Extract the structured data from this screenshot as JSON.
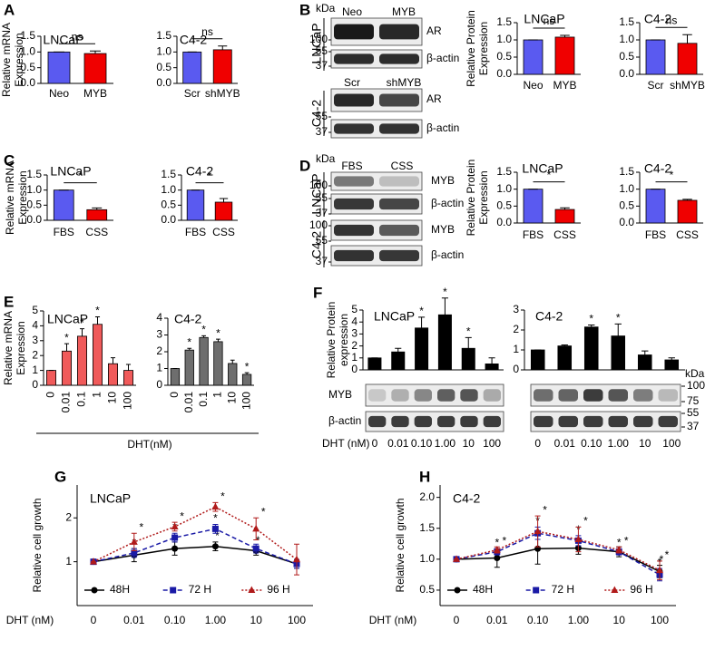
{
  "panels": [
    "A",
    "B",
    "C",
    "D",
    "E",
    "F",
    "G",
    "H"
  ],
  "blots": {
    "B": {
      "unit": "kDa",
      "groups": [
        {
          "cell": "LNCaP",
          "lanes": [
            "Neo",
            "MYB"
          ],
          "rows": [
            "AR",
            "β-actin"
          ],
          "markers": [
            "100",
            "55",
            "37"
          ]
        },
        {
          "cell": "C4-2",
          "lanes": [
            "Scr",
            "shMYB"
          ],
          "rows": [
            "AR",
            "β-actin"
          ],
          "markers": [
            "55",
            "37"
          ]
        }
      ]
    },
    "D": {
      "unit": "kDa",
      "groups": [
        {
          "cell": "LNCaP",
          "lanes": [
            "FBS",
            "CSS"
          ],
          "rows": [
            "MYB",
            "β-actin"
          ],
          "markers": [
            "100",
            "55",
            "37"
          ]
        },
        {
          "cell": "C4-2",
          "rows": [
            "MYB",
            "β-actin"
          ],
          "markers": [
            "100",
            "55",
            "37"
          ]
        }
      ]
    },
    "F": {
      "unit": "kDa",
      "rows": [
        "MYB",
        "β-actin"
      ],
      "markers": [
        "100",
        "75",
        "55",
        "37"
      ]
    }
  },
  "chart_data": [
    {
      "type": "bar",
      "title": "LNCaP",
      "ylabel": [
        "Relative mRNA",
        "Expression"
      ],
      "categories": [
        "Neo",
        "MYB"
      ],
      "values": [
        1.0,
        0.95
      ],
      "errors": [
        0,
        0.08
      ],
      "colors": [
        "#5a5af0",
        "#f00000"
      ],
      "ylim": [
        0,
        1.5
      ],
      "yticks": [
        {
          "value": 0,
          "label": "0.0"
        },
        0.5,
        {
          "value": 1,
          "label": "1.0"
        },
        1.5
      ],
      "sig": "ns"
    },
    {
      "type": "bar",
      "title": "C4-2",
      "categories": [
        "Scr",
        "shMYB"
      ],
      "values": [
        1.0,
        1.07
      ],
      "errors": [
        0,
        0.12
      ],
      "colors": [
        "#5a5af0",
        "#f00000"
      ],
      "ylim": [
        0,
        1.5
      ],
      "yticks": [
        {
          "value": 0,
          "label": "0.0"
        },
        0.5,
        {
          "value": 1,
          "label": "1.0"
        },
        1.5
      ],
      "sig": "ns"
    },
    {
      "type": "bar",
      "title": "LNCaP",
      "ylabel": [
        "Relative Protein",
        "Expression"
      ],
      "categories": [
        "Neo",
        "MYB"
      ],
      "values": [
        1.0,
        1.08
      ],
      "errors": [
        0,
        0.05
      ],
      "colors": [
        "#5a5af0",
        "#f00000"
      ],
      "ylim": [
        0,
        1.5
      ],
      "yticks": [
        {
          "value": 0,
          "label": "0.0"
        },
        0.5,
        {
          "value": 1,
          "label": "1.0"
        },
        1.5
      ],
      "sig": "ns"
    },
    {
      "type": "bar",
      "title": "C4-2",
      "categories": [
        "Scr",
        "shMYB"
      ],
      "values": [
        1.0,
        0.9
      ],
      "errors": [
        0,
        0.25
      ],
      "colors": [
        "#5a5af0",
        "#f00000"
      ],
      "ylim": [
        0,
        1.5
      ],
      "yticks": [
        {
          "value": 0,
          "label": "0.0"
        },
        0.5,
        {
          "value": 1,
          "label": "1.0"
        },
        1.5
      ],
      "sig": "ns"
    },
    {
      "type": "bar",
      "title": "LNCaP",
      "ylabel": [
        "Relative mRNA",
        "Expression"
      ],
      "categories": [
        "FBS",
        "CSS"
      ],
      "values": [
        1.0,
        0.35
      ],
      "errors": [
        0,
        0.06
      ],
      "colors": [
        "#5a5af0",
        "#f00000"
      ],
      "ylim": [
        0,
        1.5
      ],
      "yticks": [
        {
          "value": 0,
          "label": "0.0"
        },
        0.5,
        {
          "value": 1,
          "label": "1.0"
        },
        1.5
      ],
      "sig": "*"
    },
    {
      "type": "bar",
      "title": "C4-2",
      "categories": [
        "FBS",
        "CSS"
      ],
      "values": [
        1.0,
        0.6
      ],
      "errors": [
        0,
        0.12
      ],
      "colors": [
        "#5a5af0",
        "#f00000"
      ],
      "ylim": [
        0,
        1.5
      ],
      "yticks": [
        {
          "value": 0,
          "label": "0.0"
        },
        0.5,
        {
          "value": 1,
          "label": "1.0"
        },
        1.5
      ],
      "sig": "*"
    },
    {
      "type": "bar",
      "title": "LNCaP",
      "ylabel": [
        "Relative Protein",
        "Expression"
      ],
      "categories": [
        "FBS",
        "CSS"
      ],
      "values": [
        1.0,
        0.4
      ],
      "errors": [
        0,
        0.05
      ],
      "colors": [
        "#5a5af0",
        "#f00000"
      ],
      "ylim": [
        0,
        1.5
      ],
      "yticks": [
        {
          "value": 0,
          "label": "0.0"
        },
        0.5,
        {
          "value": 1,
          "label": "1.0"
        },
        1.5
      ],
      "sig": "*"
    },
    {
      "type": "bar",
      "title": "C4-2",
      "categories": [
        "FBS",
        "CSS"
      ],
      "values": [
        1.0,
        0.67
      ],
      "errors": [
        0,
        0.03
      ],
      "colors": [
        "#5a5af0",
        "#f00000"
      ],
      "ylim": [
        0,
        1.5
      ],
      "yticks": [
        {
          "value": 0,
          "label": "0.0"
        },
        0.5,
        {
          "value": 1,
          "label": "1.0"
        },
        1.5
      ],
      "sig": "*"
    },
    {
      "type": "bar",
      "title": "LNCaP",
      "ylabel": [
        "Relative mRNA",
        "Expression"
      ],
      "xlabel": "DHT(nM)",
      "categories": [
        "0",
        "0.01",
        "0.1",
        "1",
        "10",
        "100"
      ],
      "values": [
        1.0,
        2.3,
        3.3,
        4.1,
        1.45,
        1.0
      ],
      "errors": [
        0,
        0.5,
        0.5,
        0.5,
        0.4,
        0.4
      ],
      "color": "#f05a5a",
      "ylim": [
        0,
        5
      ],
      "yticks": [
        0,
        1,
        2,
        3,
        4,
        5
      ],
      "sig": [
        null,
        "*",
        "*",
        "*",
        null,
        null
      ]
    },
    {
      "type": "bar",
      "title": "C4-2",
      "categories": [
        "0",
        "0.01",
        "0.1",
        "1",
        "10",
        "100"
      ],
      "values": [
        1.0,
        2.1,
        2.85,
        2.6,
        1.3,
        0.65
      ],
      "errors": [
        0,
        0.1,
        0.1,
        0.15,
        0.2,
        0.1
      ],
      "color": "#6e6e6e",
      "ylim": [
        0,
        4
      ],
      "yticks": [
        0,
        1,
        2,
        3,
        4
      ],
      "sig": [
        null,
        "*",
        "*",
        "*",
        null,
        "*"
      ]
    },
    {
      "type": "bar",
      "title": "LNCaP",
      "ylabel": [
        "Relative Protein",
        "expression"
      ],
      "xlabel": "DHT (nM)",
      "categories": [
        "0",
        "0.01",
        "0.10",
        "1.00",
        "10",
        "100"
      ],
      "values": [
        1.0,
        1.5,
        3.5,
        4.6,
        1.8,
        0.5
      ],
      "errors": [
        0,
        0.3,
        0.9,
        1.4,
        0.9,
        0.5
      ],
      "color": "#000000",
      "ylim": [
        0,
        5
      ],
      "yticks": [
        0,
        1,
        2,
        3,
        4,
        5
      ],
      "sig": [
        null,
        null,
        "*",
        "*",
        "*",
        null
      ]
    },
    {
      "type": "bar",
      "title": "C4-2",
      "categories": [
        "0",
        "0.01",
        "0.10",
        "1.00",
        "10",
        "100"
      ],
      "values": [
        1.0,
        1.2,
        2.15,
        1.7,
        0.75,
        0.5
      ],
      "errors": [
        0,
        0.05,
        0.1,
        0.6,
        0.2,
        0.1
      ],
      "color": "#000000",
      "ylim": [
        0,
        3
      ],
      "yticks": [
        0,
        1,
        2,
        3
      ],
      "sig": [
        null,
        null,
        "*",
        "*",
        null,
        null
      ]
    },
    {
      "type": "line",
      "title": "LNCaP",
      "ylabel": "Relative cell growth",
      "xlabel": "DHT (nM)",
      "categories": [
        "0",
        "0.01",
        "0.10",
        "1.00",
        "10",
        "100"
      ],
      "ylim": [
        0,
        2.75
      ],
      "yticks": [
        1,
        2
      ],
      "series": [
        {
          "name": "48H",
          "color": "#000000",
          "line_style": "solid",
          "marker": "circle",
          "values": [
            1.0,
            1.15,
            1.3,
            1.35,
            1.25,
            0.95
          ],
          "errors": [
            0,
            0.15,
            0.15,
            0.1,
            0.1,
            0.1
          ],
          "sig": [
            null,
            null,
            null,
            "*",
            "*",
            null
          ]
        },
        {
          "name": "72 H",
          "color": "#1a1aa6",
          "line_style": "dashed",
          "marker": "square",
          "values": [
            1.0,
            1.2,
            1.55,
            1.75,
            1.3,
            0.95
          ],
          "errors": [
            0,
            0.1,
            0.1,
            0.1,
            0.1,
            0.1
          ],
          "sig": [
            null,
            "*",
            "*",
            "*",
            null,
            null
          ]
        },
        {
          "name": "96 H",
          "color": "#b01a1a",
          "line_style": "dotted",
          "marker": "triangle",
          "values": [
            1.0,
            1.45,
            1.8,
            2.25,
            1.75,
            1.05
          ],
          "errors": [
            0,
            0.2,
            0.1,
            0.1,
            0.25,
            0.35
          ],
          "sig": [
            null,
            "*",
            "*",
            "*",
            "*",
            null
          ]
        }
      ]
    },
    {
      "type": "line",
      "title": "C4-2",
      "ylabel": "Relative cell growth",
      "xlabel": "DHT (nM)",
      "categories": [
        "0",
        "0.01",
        "0.10",
        "1.00",
        "10",
        "100"
      ],
      "ylim": [
        0.25,
        2.2
      ],
      "yticks": [
        0.5,
        {
          "value": 1,
          "label": "1.0"
        },
        1.5,
        {
          "value": 2,
          "label": "2.0"
        }
      ],
      "series": [
        {
          "name": "48H",
          "color": "#000000",
          "line_style": "solid",
          "marker": "circle",
          "values": [
            1.0,
            1.02,
            1.17,
            1.18,
            1.12,
            0.8
          ],
          "errors": [
            0,
            0.15,
            0.25,
            0.1,
            0.08,
            0.1
          ],
          "sig": [
            null,
            null,
            null,
            null,
            null,
            "*"
          ]
        },
        {
          "name": "72 H",
          "color": "#1a1aa6",
          "line_style": "dashed",
          "marker": "square",
          "values": [
            1.0,
            1.12,
            1.42,
            1.3,
            1.12,
            0.75
          ],
          "errors": [
            0,
            0.05,
            0.1,
            0.08,
            0.05,
            0.1
          ],
          "sig": [
            null,
            "*",
            "*",
            "*",
            "*",
            "*"
          ]
        },
        {
          "name": "96 H",
          "color": "#b01a1a",
          "line_style": "dotted",
          "marker": "triangle",
          "values": [
            1.0,
            1.15,
            1.45,
            1.32,
            1.15,
            0.82
          ],
          "errors": [
            0,
            0.05,
            0.25,
            0.2,
            0.05,
            0.15
          ],
          "sig": [
            null,
            "*",
            "*",
            "*",
            "*",
            "*"
          ]
        }
      ]
    }
  ]
}
